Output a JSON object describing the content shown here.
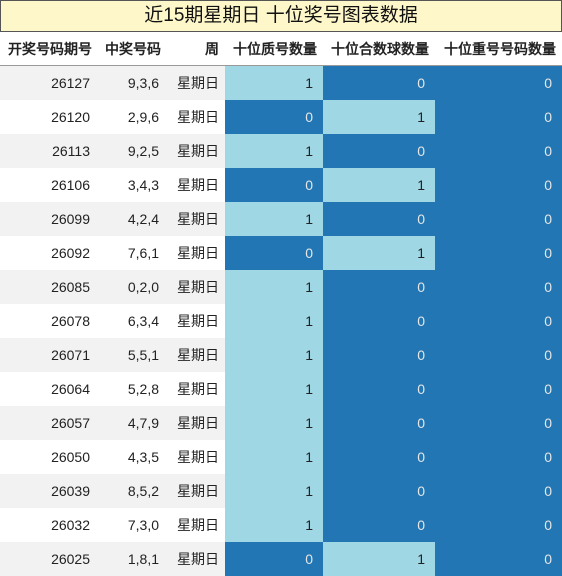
{
  "title": "近15期星期日 十位奖号图表数据",
  "table": {
    "header": [
      "开奖号码期号",
      "中奖号码",
      "周",
      "十位质号数量",
      "十位合数球数量",
      "十位重号号码数量"
    ],
    "rows": [
      [
        26127,
        "9,3,6",
        "星期日",
        1,
        0,
        0
      ],
      [
        26120,
        "2,9,6",
        "星期日",
        0,
        1,
        0
      ],
      [
        26113,
        "9,2,5",
        "星期日",
        1,
        0,
        0
      ],
      [
        26106,
        "3,4,3",
        "星期日",
        0,
        1,
        0
      ],
      [
        26099,
        "4,2,4",
        "星期日",
        1,
        0,
        0
      ],
      [
        26092,
        "7,6,1",
        "星期日",
        0,
        1,
        0
      ],
      [
        26085,
        "0,2,0",
        "星期日",
        1,
        0,
        0
      ],
      [
        26078,
        "6,3,4",
        "星期日",
        1,
        0,
        0
      ],
      [
        26071,
        "5,5,1",
        "星期日",
        1,
        0,
        0
      ],
      [
        26064,
        "5,2,8",
        "星期日",
        1,
        0,
        0
      ],
      [
        26057,
        "4,7,9",
        "星期日",
        1,
        0,
        0
      ],
      [
        26050,
        "4,3,5",
        "星期日",
        1,
        0,
        0
      ],
      [
        26039,
        "8,5,2",
        "星期日",
        1,
        0,
        0
      ],
      [
        26032,
        "7,3,0",
        "星期日",
        1,
        0,
        0
      ],
      [
        26025,
        "1,8,1",
        "星期日",
        0,
        1,
        0
      ]
    ],
    "cell_colors": {
      "0": "#2176b3",
      "1": "#9fd7e4"
    }
  }
}
